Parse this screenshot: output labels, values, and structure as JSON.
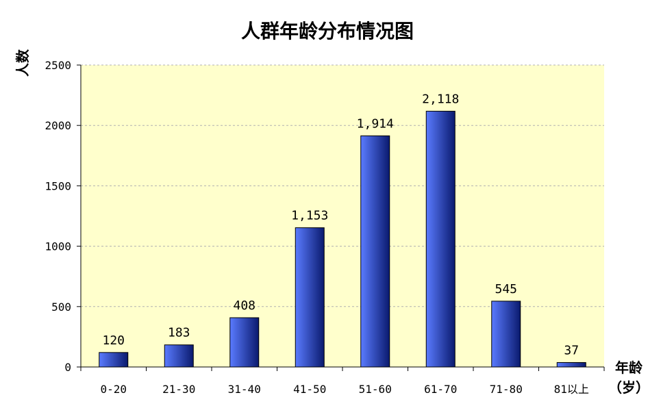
{
  "chart_data": {
    "type": "bar",
    "title": "人群年龄分布情况图",
    "xlabel_line1": "年龄",
    "xlabel_line2": "（岁）",
    "ylabel": "人数",
    "categories": [
      "0-20",
      "21-30",
      "31-40",
      "41-50",
      "51-60",
      "61-70",
      "71-80",
      "81以上"
    ],
    "values": [
      120,
      183,
      408,
      1153,
      1914,
      2118,
      545,
      37
    ],
    "value_labels": [
      "120",
      "183",
      "408",
      "1,153",
      "1,914",
      "2,118",
      "545",
      "37"
    ],
    "ylim": [
      0,
      2500
    ],
    "yticks": [
      0,
      500,
      1000,
      1500,
      2000,
      2500
    ],
    "grid": true,
    "legend": "none"
  },
  "colors": {
    "plot_background": "#FFFFCC",
    "bar_light": "#5A7BFF",
    "bar_dark": "#0A1A6E",
    "grid": "#B0B0B0"
  }
}
